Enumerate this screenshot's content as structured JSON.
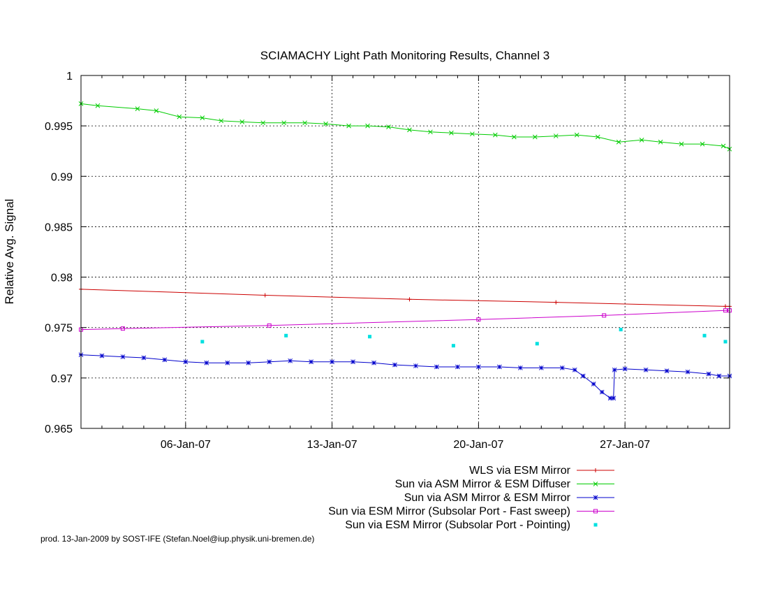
{
  "chart_data": {
    "type": "line",
    "title": "SCIAMACHY Light Path Monitoring Results, Channel 3",
    "xlabel": "",
    "ylabel": "Relative Avg. Signal",
    "x_tick_labels": [
      "06-Jan-07",
      "13-Jan-07",
      "20-Jan-07",
      "27-Jan-07"
    ],
    "x_tick_days": [
      6,
      13,
      20,
      27
    ],
    "xlim_days": [
      1.0,
      32.0
    ],
    "ylim": [
      0.965,
      1.0
    ],
    "y_ticks": [
      0.965,
      0.97,
      0.975,
      0.98,
      0.985,
      0.99,
      0.995,
      1
    ],
    "y_tick_labels": [
      "0.965",
      "0.97",
      "0.975",
      "0.98",
      "0.985",
      "0.99",
      "0.995",
      "1"
    ],
    "grid": true,
    "legend_position": "below plot, right-aligned",
    "series": [
      {
        "name": "WLS via ESM Mirror",
        "color": "#cc0000",
        "marker": "plus",
        "x": [
          1.0,
          9.8,
          16.7,
          23.7,
          31.8,
          32.0
        ],
        "y": [
          0.9788,
          0.9782,
          0.9778,
          0.9775,
          0.9771,
          0.9771
        ]
      },
      {
        "name": "Sun via ASM Mirror & ESM Diffuser",
        "color": "#00cc00",
        "marker": "cross",
        "x": [
          1.0,
          1.8,
          3.7,
          4.6,
          5.7,
          6.8,
          7.7,
          8.7,
          9.7,
          10.7,
          11.7,
          12.7,
          13.8,
          14.7,
          15.7,
          16.7,
          17.7,
          18.7,
          19.7,
          20.8,
          21.7,
          22.7,
          23.7,
          24.7,
          25.7,
          26.7,
          27.8,
          28.7,
          29.7,
          30.7,
          31.7,
          32.0
        ],
        "y": [
          0.9972,
          0.997,
          0.9967,
          0.9965,
          0.9959,
          0.9958,
          0.9955,
          0.9954,
          0.9953,
          0.9953,
          0.9953,
          0.9952,
          0.995,
          0.995,
          0.9949,
          0.9946,
          0.9944,
          0.9943,
          0.9942,
          0.9941,
          0.9939,
          0.9939,
          0.994,
          0.9941,
          0.9939,
          0.9934,
          0.9936,
          0.9934,
          0.9932,
          0.9932,
          0.993,
          0.9927
        ]
      },
      {
        "name": "Sun via ASM Mirror & ESM Mirror",
        "color": "#0000cc",
        "marker": "asterisk",
        "x": [
          1.0,
          2.0,
          3.0,
          4.0,
          5.0,
          6.0,
          7.0,
          8.0,
          9.0,
          10.0,
          11.0,
          12.0,
          13.0,
          14.0,
          15.0,
          16.0,
          17.0,
          18.0,
          19.0,
          20.0,
          21.0,
          22.0,
          23.0,
          24.0,
          24.6,
          25.0,
          25.5,
          25.9,
          26.3,
          26.45,
          26.5,
          27.0,
          28.0,
          29.0,
          30.0,
          31.0,
          31.5,
          32.0
        ],
        "y": [
          0.9723,
          0.9722,
          0.9721,
          0.972,
          0.9718,
          0.9716,
          0.9715,
          0.9715,
          0.9715,
          0.9716,
          0.9717,
          0.9716,
          0.9716,
          0.9716,
          0.9715,
          0.9713,
          0.9712,
          0.9711,
          0.9711,
          0.9711,
          0.9711,
          0.971,
          0.971,
          0.971,
          0.9708,
          0.9702,
          0.9694,
          0.9686,
          0.968,
          0.968,
          0.9708,
          0.9709,
          0.9708,
          0.9707,
          0.9706,
          0.9704,
          0.9702,
          0.9702
        ]
      },
      {
        "name": "Sun via ESM Mirror (Subsolar Port - Fast sweep)",
        "color": "#cc00cc",
        "marker": "square",
        "x": [
          1.0,
          3.0,
          10.0,
          20.0,
          26.0,
          31.8,
          32.0
        ],
        "y": [
          0.9748,
          0.9749,
          0.9752,
          0.9758,
          0.9762,
          0.9767,
          0.9767
        ]
      },
      {
        "name": "Sun via ESM Mirror (Subsolar Port - Pointing)",
        "color": "#00e0e0",
        "marker": "dot",
        "x": [
          6.8,
          10.8,
          14.8,
          18.8,
          22.8,
          26.8,
          30.8,
          31.8
        ],
        "y": [
          0.9736,
          0.9742,
          0.9741,
          0.9732,
          0.9734,
          0.9748,
          0.9742,
          0.9736
        ]
      }
    ]
  },
  "footer": "prod. 13-Jan-2009 by SOST-IFE (Stefan.Noel@iup.physik.uni-bremen.de)"
}
